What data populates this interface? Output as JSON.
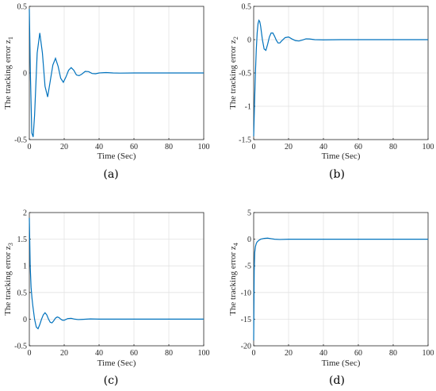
{
  "chart_data": [
    {
      "type": "line",
      "panel": "(a)",
      "xlabel": "Time (Sec)",
      "ylabel": "The tracking error z",
      "ylabel_sub": "1",
      "xlim": [
        0,
        100
      ],
      "ylim": [
        -0.5,
        0.5
      ],
      "xticks": [
        0,
        20,
        40,
        60,
        80,
        100
      ],
      "yticks": [
        -0.5,
        0,
        0.5
      ],
      "ytick_labels": [
        "-0.5",
        "0",
        "0.5"
      ],
      "grid": true,
      "series": [
        {
          "color": "#0072BD",
          "x": [
            0,
            0.6,
            1.4,
            2.2,
            3.0,
            4.5,
            6.0,
            7.5,
            9.0,
            10.5,
            12.0,
            13.5,
            15.0,
            16.5,
            18.0,
            19.5,
            21.0,
            22.5,
            24.0,
            25.5,
            27.0,
            28.5,
            30.0,
            32.0,
            34.0,
            36.0,
            38.0,
            40.0,
            44.0,
            48.0,
            52.0,
            60.0,
            70.0,
            80.0,
            90.0,
            100.0
          ],
          "y": [
            0.48,
            0.0,
            -0.45,
            -0.48,
            -0.32,
            0.15,
            0.3,
            0.15,
            -0.1,
            -0.18,
            -0.06,
            0.06,
            0.11,
            0.05,
            -0.04,
            -0.07,
            -0.03,
            0.02,
            0.04,
            0.02,
            -0.015,
            -0.02,
            -0.01,
            0.012,
            0.01,
            -0.004,
            -0.006,
            0.0,
            0.003,
            0.0,
            -0.001,
            0.0,
            0.0,
            0.0,
            0.0,
            0.0
          ]
        }
      ]
    },
    {
      "type": "line",
      "panel": "(b)",
      "xlabel": "Time (Sec)",
      "ylabel": "The tracking error z",
      "ylabel_sub": "2",
      "xlim": [
        0,
        100
      ],
      "ylim": [
        -1.5,
        0.5
      ],
      "xticks": [
        0,
        20,
        40,
        60,
        80,
        100
      ],
      "yticks": [
        -1.5,
        -1,
        -0.5,
        0,
        0.5
      ],
      "ytick_labels": [
        "-1.5",
        "-1",
        "-0.5",
        "0",
        "0.5"
      ],
      "grid": true,
      "series": [
        {
          "color": "#0072BD",
          "x": [
            0,
            0.5,
            1.0,
            1.5,
            2.0,
            2.5,
            3.0,
            3.5,
            4.0,
            5.0,
            6.0,
            7.0,
            8.0,
            9.0,
            10.0,
            11.0,
            12.0,
            13.0,
            14.0,
            15.0,
            16.0,
            18.0,
            20.0,
            22.0,
            24.0,
            26.0,
            28.0,
            30.0,
            32.0,
            35.0,
            40.0,
            50.0,
            60.0,
            80.0,
            100.0
          ],
          "y": [
            -1.45,
            -0.95,
            -0.5,
            -0.15,
            0.1,
            0.24,
            0.29,
            0.27,
            0.2,
            0.0,
            -0.14,
            -0.16,
            -0.07,
            0.04,
            0.1,
            0.1,
            0.05,
            -0.01,
            -0.05,
            -0.05,
            -0.02,
            0.03,
            0.04,
            0.01,
            -0.015,
            -0.02,
            -0.005,
            0.012,
            0.01,
            0.0,
            -0.003,
            0.0,
            0.0,
            0.0,
            0.0
          ]
        }
      ]
    },
    {
      "type": "line",
      "panel": "(c)",
      "xlabel": "Time (Sec)",
      "ylabel": "The tracking error z",
      "ylabel_sub": "3",
      "xlim": [
        0,
        100
      ],
      "ylim": [
        -0.5,
        2
      ],
      "xticks": [
        0,
        20,
        40,
        60,
        80,
        100
      ],
      "yticks": [
        -0.5,
        0,
        0.5,
        1,
        1.5,
        2
      ],
      "ytick_labels": [
        "-0.5",
        "0",
        "0.5",
        "1",
        "1.5",
        "2"
      ],
      "grid": true,
      "series": [
        {
          "color": "#0072BD",
          "x": [
            0,
            0.5,
            1.0,
            1.5,
            2.0,
            3.0,
            4.0,
            5.0,
            6.0,
            7.0,
            8.0,
            9.0,
            10.0,
            11.0,
            12.0,
            13.0,
            14.0,
            15.0,
            16.0,
            17.0,
            18.0,
            19.0,
            20.0,
            22.0,
            24.0,
            26.0,
            28.0,
            30.0,
            35.0,
            40.0,
            50.0,
            60.0,
            80.0,
            100.0
          ],
          "y": [
            1.9,
            1.0,
            0.6,
            0.4,
            0.25,
            0.0,
            -0.15,
            -0.18,
            -0.1,
            0.0,
            0.08,
            0.12,
            0.08,
            0.0,
            -0.06,
            -0.07,
            -0.03,
            0.02,
            0.04,
            0.03,
            0.0,
            -0.02,
            -0.02,
            0.01,
            0.015,
            0.0,
            -0.008,
            -0.005,
            0.004,
            0.0,
            0.0,
            0.0,
            0.0,
            0.0
          ]
        }
      ]
    },
    {
      "type": "line",
      "panel": "(d)",
      "xlabel": "Time (Sec)",
      "ylabel": "The tracking error z",
      "ylabel_sub": "4",
      "xlim": [
        0,
        100
      ],
      "ylim": [
        -20,
        5
      ],
      "xticks": [
        0,
        20,
        40,
        60,
        80,
        100
      ],
      "yticks": [
        -20,
        -15,
        -10,
        -5,
        0,
        5
      ],
      "ytick_labels": [
        "-20",
        "-15",
        "-10",
        "-5",
        "0",
        "5"
      ],
      "grid": true,
      "series": [
        {
          "color": "#0072BD",
          "x": [
            0,
            0.3,
            0.6,
            1.0,
            1.5,
            2.0,
            3.0,
            4.0,
            6.0,
            8.0,
            10.0,
            12.0,
            15.0,
            20.0,
            30.0,
            50.0,
            100.0
          ],
          "y": [
            -19.0,
            -6.0,
            -2.5,
            -1.4,
            -0.8,
            -0.5,
            -0.2,
            0.0,
            0.15,
            0.2,
            0.1,
            0.0,
            -0.05,
            0.0,
            0.0,
            0.0,
            0.0
          ]
        }
      ]
    }
  ]
}
